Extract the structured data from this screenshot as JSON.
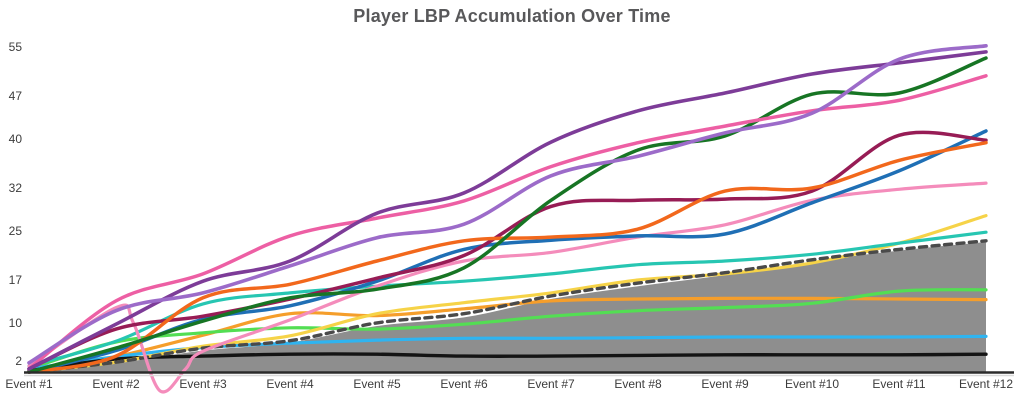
{
  "title": "Player LBP Accumulation Over Time",
  "chart_data": {
    "type": "line",
    "title": "Player LBP Accumulation Over Time",
    "xlabel": "",
    "ylabel": "",
    "legend": "none",
    "grid": false,
    "ylim": [
      2,
      55
    ],
    "y_ticks": [
      55,
      47,
      40,
      32,
      25,
      17,
      10,
      2
    ],
    "x_categories": [
      "Event #1",
      "Event #2",
      "Event #3",
      "Event #4",
      "Event #5",
      "Event #6",
      "Event #7",
      "Event #8",
      "Event #9",
      "Event #10",
      "Event #11",
      "Event #12"
    ],
    "title_color": "#58585a",
    "label_color": "#3c3c3c",
    "axis_color": "#2b2b2b",
    "axis_shadow_color": "#d9d9d9",
    "series": [
      {
        "name": "gray-area",
        "style": "area",
        "color": "#8e8e8e",
        "width": 2,
        "values": [
          2,
          3.4,
          5.5,
          6.8,
          9.5,
          10.9,
          13.9,
          16,
          17.8,
          20,
          21.8,
          23.2
        ]
      },
      {
        "name": "orange-flat",
        "style": "solid",
        "color": "#f59e2b",
        "width": 3.2,
        "values": [
          2,
          4.5,
          8,
          11.5,
          11.2,
          12.3,
          13.6,
          13.9,
          14,
          14,
          13.9,
          13.8
        ]
      },
      {
        "name": "bright-green",
        "style": "solid",
        "color": "#53de53",
        "width": 3.2,
        "values": [
          2.5,
          6.9,
          8.4,
          9.2,
          9,
          9.8,
          11.1,
          12,
          12.5,
          13.2,
          15.2,
          15.4
        ]
      },
      {
        "name": "sky-blue",
        "style": "solid",
        "color": "#2fb4f0",
        "width": 3.2,
        "values": [
          2.5,
          4.5,
          6,
          6.7,
          7.2,
          7.5,
          7.5,
          7.6,
          7.7,
          7.7,
          7.7,
          7.8
        ]
      },
      {
        "name": "black",
        "style": "solid",
        "color": "#141414",
        "width": 3.4,
        "values": [
          2.2,
          4.1,
          4.6,
          4.9,
          4.9,
          4.6,
          4.6,
          4.7,
          4.8,
          4.8,
          4.8,
          4.9
        ]
      },
      {
        "name": "yellow",
        "style": "solid",
        "color": "#f6d348",
        "width": 3.2,
        "values": [
          2,
          3.6,
          6.2,
          7.9,
          11.5,
          13.3,
          14.9,
          17,
          18,
          19.8,
          23,
          27.5
        ]
      },
      {
        "name": "dashed-gray",
        "style": "dashed",
        "color": "#4a4a4a",
        "width": 3.4,
        "values": [
          2,
          3.6,
          5.9,
          7.1,
          10,
          11.5,
          14.4,
          16.5,
          18.2,
          20.3,
          22,
          23.4
        ]
      },
      {
        "name": "teal",
        "style": "solid",
        "color": "#27c6b2",
        "width": 3.2,
        "values": [
          3,
          7,
          13.1,
          14.9,
          16,
          16.8,
          18,
          19.5,
          20.1,
          21.2,
          23,
          24.8
        ]
      },
      {
        "name": "light-pink",
        "style": "solid",
        "color": "#f48cbb",
        "width": 3.2,
        "x": [
          1,
          2,
          2.2,
          2.5,
          2.8,
          3,
          4,
          5,
          6,
          7,
          8,
          9,
          10,
          11,
          12
        ],
        "values": [
          3,
          12.5,
          10,
          -1,
          2.5,
          5.4,
          10.5,
          16,
          20.1,
          21.5,
          24,
          26,
          30,
          31.8,
          32.8
        ]
      },
      {
        "name": "blue",
        "style": "solid",
        "color": "#1f6fb5",
        "width": 3.5,
        "values": [
          2,
          5.5,
          10.6,
          12.8,
          16.8,
          22,
          23.5,
          24.2,
          24.5,
          29.6,
          34.8,
          41.3
        ]
      },
      {
        "name": "maroon",
        "style": "solid",
        "color": "#971c55",
        "width": 3.5,
        "values": [
          2.5,
          9,
          11.1,
          13.9,
          17.3,
          21,
          29,
          30,
          30.2,
          31.5,
          40.6,
          39.8
        ]
      },
      {
        "name": "orange",
        "style": "solid",
        "color": "#f2681c",
        "width": 3.5,
        "values": [
          2,
          4.6,
          14.1,
          16.3,
          20.1,
          23.4,
          24,
          25.3,
          31.5,
          32,
          36.5,
          39.4
        ]
      },
      {
        "name": "dark-green",
        "style": "solid",
        "color": "#177524",
        "width": 3.5,
        "values": [
          2,
          5.9,
          10.3,
          14.1,
          15.5,
          19,
          30,
          38.2,
          40.5,
          47.3,
          47.5,
          53.2
        ]
      },
      {
        "name": "hot-pink",
        "style": "solid",
        "color": "#ed5fa4",
        "width": 3.5,
        "values": [
          2.5,
          13.6,
          18,
          24.2,
          27.1,
          29.9,
          35.5,
          39.4,
          42.1,
          44.6,
          46.3,
          50.3
        ]
      },
      {
        "name": "dark-purple",
        "style": "solid",
        "color": "#7d3c98",
        "width": 3.6,
        "values": [
          2.5,
          9.8,
          16.8,
          20.1,
          27.9,
          31.2,
          39.5,
          44.6,
          47.5,
          50.6,
          52.4,
          54.2
        ]
      },
      {
        "name": "violet",
        "style": "solid",
        "color": "#9c6bc9",
        "width": 3.6,
        "values": [
          3.5,
          12,
          14.9,
          19.3,
          23.9,
          26.1,
          34,
          37.2,
          41,
          44.2,
          53,
          55.2
        ]
      }
    ]
  }
}
